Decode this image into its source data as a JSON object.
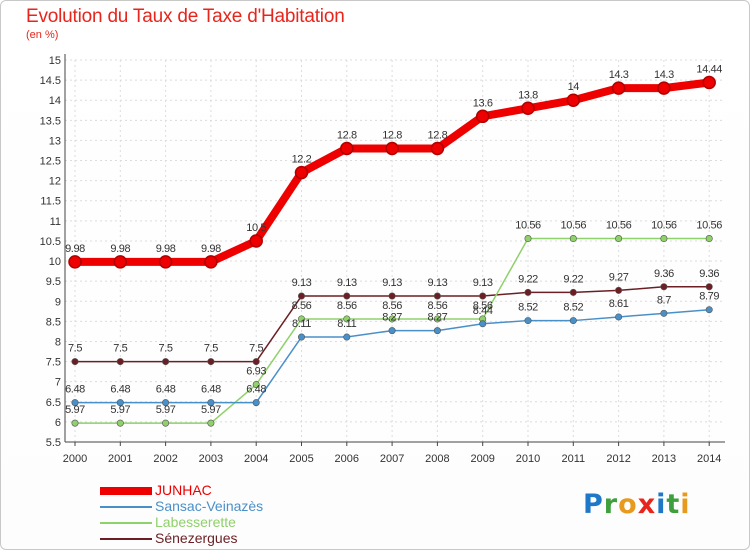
{
  "title": "Evolution du Taux de Taxe d'Habitation",
  "unit_label": "(en %)",
  "logo": {
    "letters": [
      "P",
      "r",
      "o",
      "x",
      "i",
      "t",
      "i"
    ],
    "colors": [
      "#1f77c8",
      "#3da03d",
      "#e89a1f",
      "#e8251c",
      "#1f77c8",
      "#3da03d",
      "#e89a1f"
    ]
  },
  "chart_data": {
    "type": "line",
    "x": [
      "2000",
      "2001",
      "2002",
      "2003",
      "2004",
      "2005",
      "2006",
      "2007",
      "2008",
      "2009",
      "2010",
      "2011",
      "2012",
      "2013",
      "2014"
    ],
    "ylim": [
      5.5,
      15
    ],
    "yticks": [
      "5.5",
      "6",
      "6.5",
      "7",
      "7.5",
      "8",
      "8.5",
      "9",
      "9.5",
      "10",
      "10.5",
      "11",
      "11.5",
      "12",
      "12.5",
      "13",
      "13.5",
      "14",
      "14.5",
      "15"
    ],
    "grid": true,
    "legend_position": "bottom-left",
    "series": [
      {
        "name": "JUNHAC",
        "color": "#ee0000",
        "width": 8,
        "values": [
          9.98,
          9.98,
          9.98,
          9.98,
          10.5,
          12.2,
          12.8,
          12.8,
          12.8,
          13.6,
          13.8,
          14,
          14.3,
          14.3,
          14.44
        ],
        "labels": [
          "9.98",
          "9.98",
          "9.98",
          "9.98",
          "10.5",
          "12.2",
          "12.8",
          "12.8",
          "12.8",
          "13.6",
          "13.8",
          "14",
          "14.3",
          "14.3",
          "14.44"
        ]
      },
      {
        "name": "Sansac-Veinazès",
        "color": "#4a90c8",
        "width": 1.5,
        "values": [
          6.48,
          6.48,
          6.48,
          6.48,
          6.48,
          8.11,
          8.11,
          8.27,
          8.27,
          8.44,
          8.52,
          8.52,
          8.61,
          8.7,
          8.79
        ],
        "labels": [
          "6.48",
          "6.48",
          "6.48",
          "6.48",
          "6.48",
          "8.11",
          "8.11",
          "8.27",
          "8.27",
          "8.44",
          "8.52",
          "8.52",
          "8.61",
          "8.7",
          "8.79"
        ]
      },
      {
        "name": "Labesserette",
        "color": "#8fd16a",
        "width": 1.5,
        "values": [
          5.97,
          5.97,
          5.97,
          5.97,
          6.93,
          8.56,
          8.56,
          8.56,
          8.56,
          8.56,
          10.56,
          10.56,
          10.56,
          10.56,
          10.56
        ],
        "labels": [
          "5.97",
          "5.97",
          "5.97",
          "5.97",
          "6.93",
          "8.56",
          "8.56",
          "8.56",
          "8.56",
          "8.56",
          "10.56",
          "10.56",
          "10.56",
          "10.56",
          "10.56"
        ]
      },
      {
        "name": "Sénezergues",
        "color": "#6b1f24",
        "width": 1.5,
        "values": [
          7.5,
          7.5,
          7.5,
          7.5,
          7.5,
          9.13,
          9.13,
          9.13,
          9.13,
          9.13,
          9.22,
          9.22,
          9.27,
          9.36,
          9.36
        ],
        "labels": [
          "7.5",
          "7.5",
          "7.5",
          "7.5",
          "7.5",
          "9.13",
          "9.13",
          "9.13",
          "9.13",
          "9.13",
          "9.22",
          "9.22",
          "9.27",
          "9.36",
          "9.36"
        ]
      }
    ]
  }
}
